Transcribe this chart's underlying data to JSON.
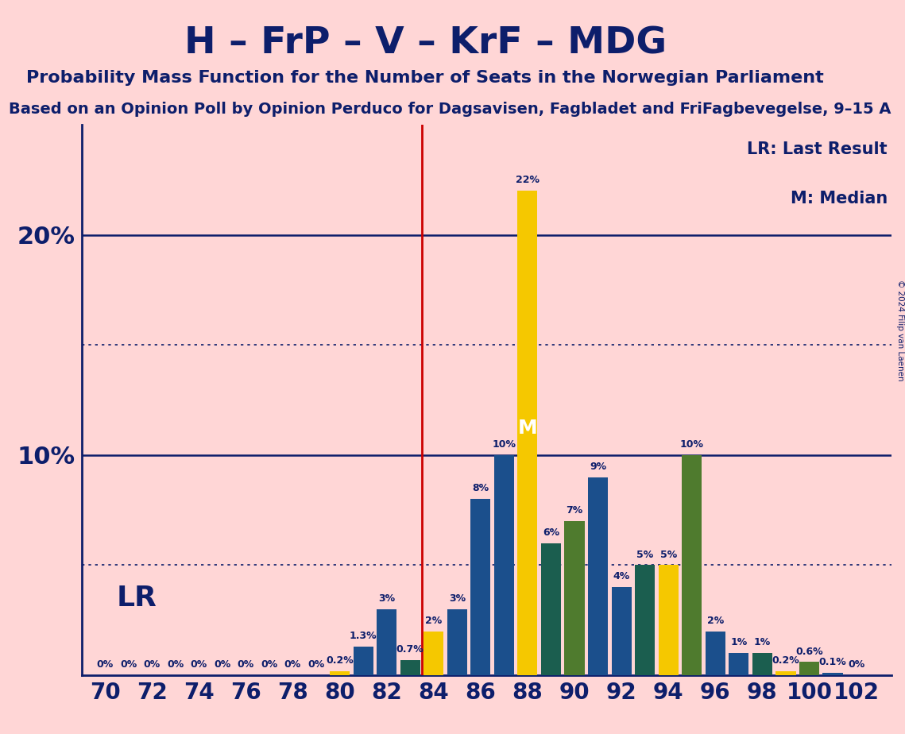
{
  "title": "H – FrP – V – KrF – MDG",
  "subtitle": "Probability Mass Function for the Number of Seats in the Norwegian Parliament",
  "subtitle2": "Based on an Opinion Poll by Opinion Perduco for Dagsavisen, Fagbladet and FriFagbevegelse, 9–15 A",
  "copyright": "© 2024 Filip van Laenen",
  "background_color": "#FFD6D6",
  "text_color": "#0D1E6B",
  "lr_line_color": "#CC0000",
  "grid_color": "#0D1E6B",
  "legend_lr": "LR: Last Result",
  "legend_m": "M: Median",
  "lr_label": "LR",
  "m_label": "M",
  "seats": [
    70,
    71,
    72,
    73,
    74,
    75,
    76,
    77,
    78,
    79,
    80,
    81,
    82,
    83,
    84,
    85,
    86,
    87,
    88,
    89,
    90,
    91,
    92,
    93,
    94,
    95,
    96,
    97,
    98,
    99,
    100,
    101,
    102
  ],
  "values": [
    0.0,
    0.0,
    0.0,
    0.0,
    0.0,
    0.0,
    0.0,
    0.0,
    0.0,
    0.0,
    0.2,
    1.3,
    3.0,
    0.7,
    2.0,
    3.0,
    8.0,
    10.0,
    22.0,
    6.0,
    7.0,
    9.0,
    4.0,
    5.0,
    5.0,
    10.0,
    2.0,
    1.0,
    1.0,
    0.2,
    0.6,
    0.1,
    0.0
  ],
  "bar_colors": [
    "#1B4F8C",
    "#1B4F8C",
    "#1B4F8C",
    "#1B4F8C",
    "#1B4F8C",
    "#1B4F8C",
    "#1B4F8C",
    "#1B4F8C",
    "#1B4F8C",
    "#1B4F8C",
    "#F5C800",
    "#1B4F8C",
    "#1B4F8C",
    "#1B5E4F",
    "#F5C800",
    "#1B4F8C",
    "#1B4F8C",
    "#1B4F8C",
    "#F5C800",
    "#1B5E4F",
    "#4F7B2E",
    "#1B4F8C",
    "#1B4F8C",
    "#1B5E4F",
    "#F5C800",
    "#4F7B2E",
    "#1B4F8C",
    "#1B4F8C",
    "#1B5E4F",
    "#F5C800",
    "#4F7B2E",
    "#1B4F8C",
    "#4F7B2E"
  ],
  "lr_seat": 84,
  "median_seat": 88,
  "ylim": [
    0,
    25
  ],
  "dotted_lines": [
    5,
    15
  ],
  "solid_lines": [
    10,
    20
  ],
  "xlim_min": 69.0,
  "xlim_max": 103.5,
  "bar_width": 0.85,
  "title_fontsize": 34,
  "subtitle_fontsize": 16,
  "subtitle2_fontsize": 14,
  "ytick_fontsize": 22,
  "xtick_fontsize": 20,
  "bar_label_fontsize": 9,
  "lr_fontsize": 26,
  "legend_fontsize": 15,
  "m_fontsize": 18
}
